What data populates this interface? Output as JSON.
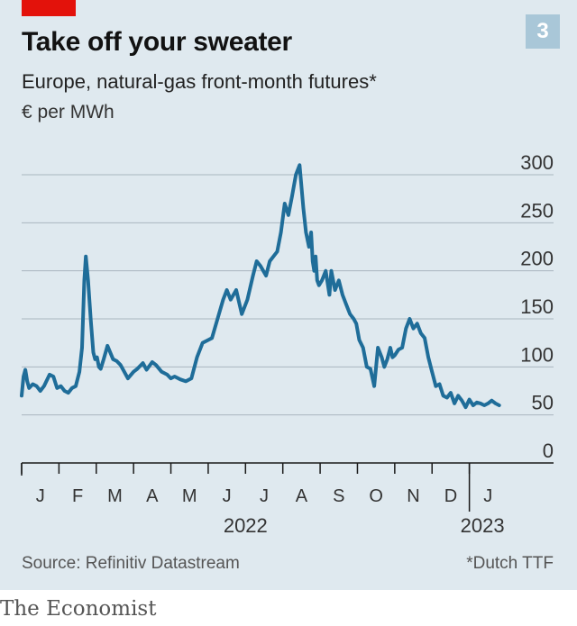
{
  "header": {
    "title": "Take off your sweater",
    "badge": "3",
    "subtitle": "Europe, natural-gas front-month futures*",
    "unit": "€ per MWh"
  },
  "footer": {
    "source": "Source: Refinitiv Datastream",
    "footnote": "*Dutch TTF",
    "brand": "The Economist"
  },
  "colors": {
    "line": "#1f6d99",
    "accent_red": "#e3120b",
    "badge": "#a9c7d8",
    "background": "#dfe9ef",
    "grid": "#a9b6bf"
  },
  "chart_data": {
    "type": "line",
    "title": "Take off your sweater",
    "subtitle": "Europe, natural-gas front-month futures*",
    "ylabel": "€ per MWh",
    "ylim": [
      0,
      300
    ],
    "yticks": [
      0,
      50,
      100,
      150,
      200,
      250,
      300
    ],
    "xlim": [
      0,
      13
    ],
    "x_months": [
      {
        "label": "J",
        "pos": 0.5
      },
      {
        "label": "F",
        "pos": 1.5
      },
      {
        "label": "M",
        "pos": 2.5
      },
      {
        "label": "A",
        "pos": 3.5
      },
      {
        "label": "M",
        "pos": 4.5
      },
      {
        "label": "J",
        "pos": 5.5
      },
      {
        "label": "J",
        "pos": 6.5
      },
      {
        "label": "A",
        "pos": 7.5
      },
      {
        "label": "S",
        "pos": 8.5
      },
      {
        "label": "O",
        "pos": 9.5
      },
      {
        "label": "N",
        "pos": 10.5
      },
      {
        "label": "D",
        "pos": 11.5
      },
      {
        "label": "J",
        "pos": 12.5
      }
    ],
    "year_labels": [
      {
        "label": "2022",
        "pos": 6.0
      },
      {
        "label": "2023",
        "pos": 12.35
      }
    ],
    "grid": true,
    "legend": "none",
    "series": [
      {
        "x": [
          0.0,
          0.05,
          0.1,
          0.15,
          0.2,
          0.3,
          0.4,
          0.5,
          0.6,
          0.75,
          0.85,
          0.95,
          1.05,
          1.15,
          1.25,
          1.35,
          1.45,
          1.55,
          1.62,
          1.68,
          1.72,
          1.78,
          1.85,
          1.92,
          1.97,
          2.02,
          2.07,
          2.12,
          2.2,
          2.3,
          2.45,
          2.55,
          2.65,
          2.75,
          2.85,
          3.0,
          3.1,
          3.25,
          3.35,
          3.5,
          3.6,
          3.75,
          3.9,
          4.0,
          4.1,
          4.25,
          4.4,
          4.55,
          4.7,
          4.85,
          5.0,
          5.1,
          5.25,
          5.4,
          5.5,
          5.6,
          5.75,
          5.9,
          6.05,
          6.2,
          6.3,
          6.4,
          6.55,
          6.65,
          6.75,
          6.85,
          6.95,
          7.05,
          7.15,
          7.25,
          7.35,
          7.45,
          7.55,
          7.62,
          7.7,
          7.76,
          7.8,
          7.84,
          7.88,
          7.92,
          7.97,
          8.05,
          8.15,
          8.25,
          8.3,
          8.4,
          8.5,
          8.6,
          8.7,
          8.8,
          8.9,
          8.97,
          9.05,
          9.15,
          9.25,
          9.35,
          9.45,
          9.55,
          9.65,
          9.72,
          9.8,
          9.88,
          9.94,
          10.0,
          10.1,
          10.2,
          10.3,
          10.4,
          10.5,
          10.6,
          10.7,
          10.8,
          10.9,
          11.0,
          11.1,
          11.2,
          11.3,
          11.4,
          11.5,
          11.6,
          11.7,
          11.8,
          11.9,
          12.0,
          12.1,
          12.2,
          12.3,
          12.4,
          12.5,
          12.6,
          12.7,
          12.8
        ],
        "values": [
          70,
          90,
          97,
          85,
          78,
          82,
          80,
          75,
          80,
          92,
          90,
          78,
          80,
          75,
          73,
          78,
          80,
          95,
          120,
          190,
          215,
          190,
          150,
          115,
          108,
          110,
          100,
          98,
          108,
          122,
          108,
          106,
          102,
          95,
          88,
          95,
          98,
          104,
          97,
          105,
          102,
          95,
          92,
          88,
          90,
          87,
          85,
          88,
          110,
          125,
          128,
          130,
          150,
          170,
          180,
          170,
          180,
          155,
          170,
          195,
          210,
          205,
          195,
          210,
          215,
          220,
          240,
          270,
          258,
          278,
          300,
          310,
          265,
          240,
          225,
          240,
          210,
          200,
          215,
          190,
          185,
          190,
          200,
          175,
          200,
          180,
          190,
          175,
          165,
          155,
          150,
          145,
          128,
          120,
          100,
          98,
          80,
          120,
          110,
          100,
          108,
          120,
          110,
          112,
          118,
          120,
          140,
          150,
          140,
          145,
          135,
          130,
          110,
          95,
          80,
          82,
          70,
          68,
          73,
          62,
          70,
          65,
          58,
          66,
          60,
          63,
          62,
          60,
          62,
          65,
          62,
          60
        ],
        "_note": "approximate weekly readings"
      }
    ]
  }
}
